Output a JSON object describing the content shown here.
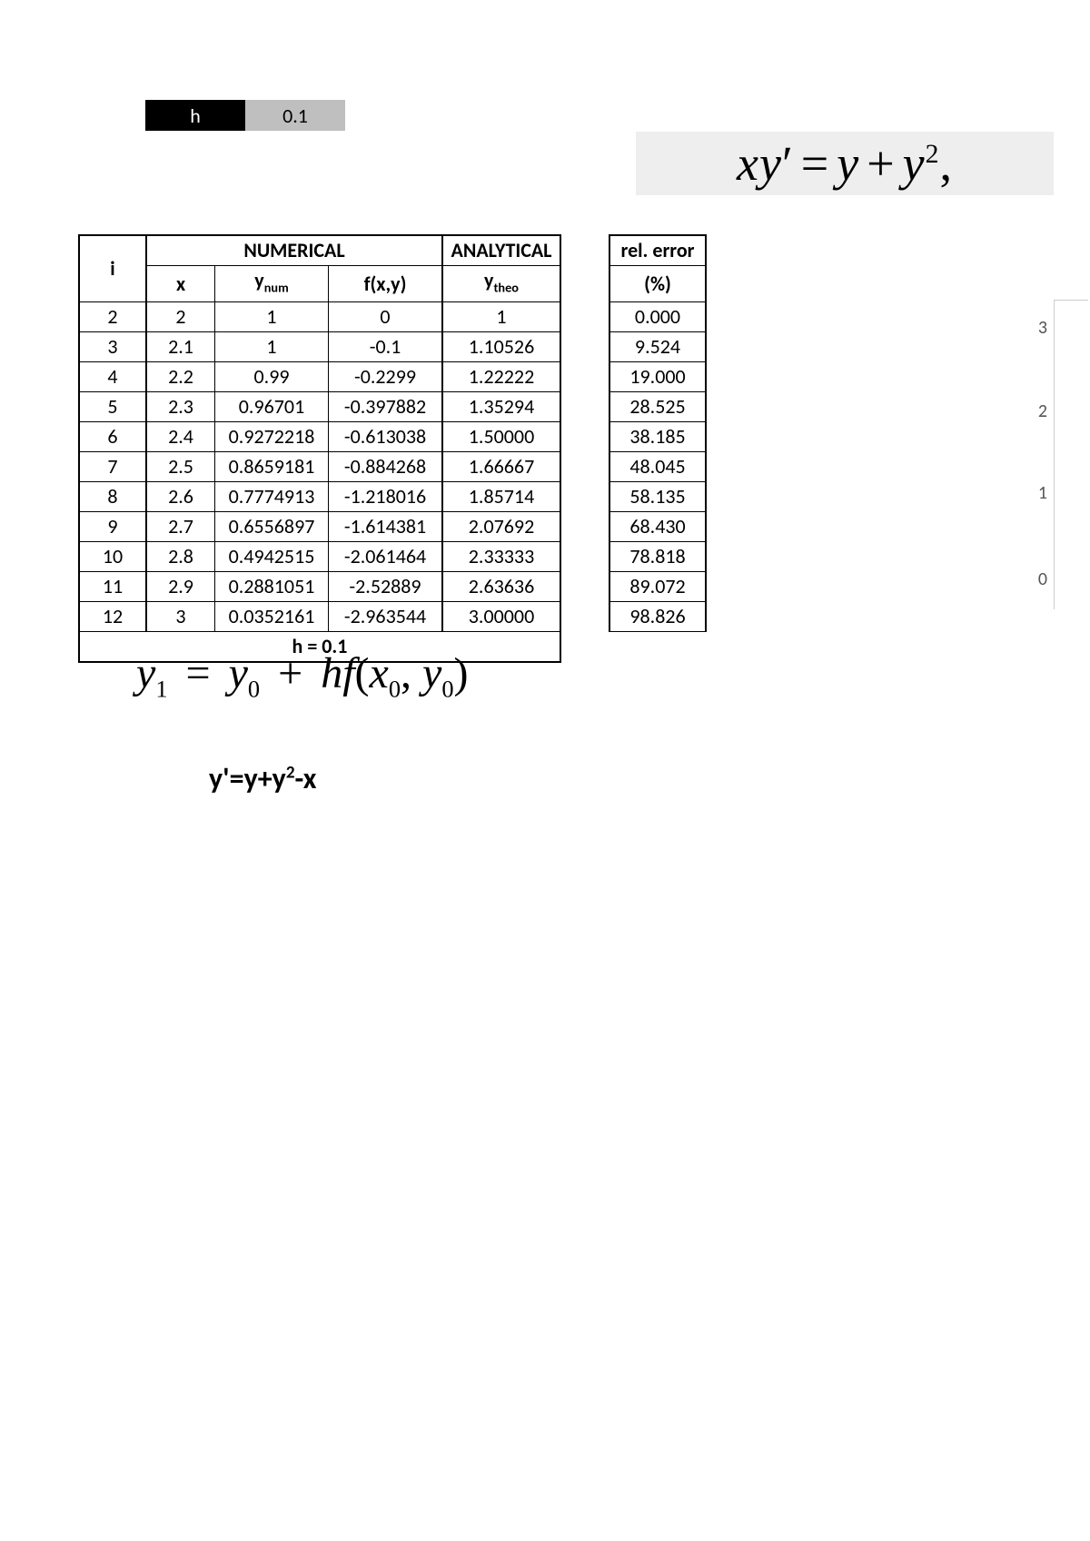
{
  "hbox": {
    "label": "h",
    "value": "0.1"
  },
  "equation1": {
    "text_parts": [
      "x",
      "y",
      "′",
      " = ",
      "y",
      " + ",
      "y",
      "2",
      ","
    ]
  },
  "table": {
    "headers": {
      "i": "i",
      "numerical": "NUMERICAL",
      "analytical": "ANALYTICAL",
      "x": "x",
      "ynum_prefix": "y",
      "ynum_sub": "num",
      "fxy": "f(x,y)",
      "ytheo_prefix": "y",
      "ytheo_sub": "theo",
      "rel_error": "rel. error",
      "percent": "(%)"
    },
    "rows": [
      {
        "i": "2",
        "x": "2",
        "ynum": "1",
        "fxy": "0",
        "ytheo": "1",
        "err": "0.000"
      },
      {
        "i": "3",
        "x": "2.1",
        "ynum": "1",
        "fxy": "-0.1",
        "ytheo": "1.10526",
        "err": "9.524"
      },
      {
        "i": "4",
        "x": "2.2",
        "ynum": "0.99",
        "fxy": "-0.2299",
        "ytheo": "1.22222",
        "err": "19.000"
      },
      {
        "i": "5",
        "x": "2.3",
        "ynum": "0.96701",
        "fxy": "-0.397882",
        "ytheo": "1.35294",
        "err": "28.525"
      },
      {
        "i": "6",
        "x": "2.4",
        "ynum": "0.9272218",
        "fxy": "-0.613038",
        "ytheo": "1.50000",
        "err": "38.185"
      },
      {
        "i": "7",
        "x": "2.5",
        "ynum": "0.8659181",
        "fxy": "-0.884268",
        "ytheo": "1.66667",
        "err": "48.045"
      },
      {
        "i": "8",
        "x": "2.6",
        "ynum": "0.7774913",
        "fxy": "-1.218016",
        "ytheo": "1.85714",
        "err": "58.135"
      },
      {
        "i": "9",
        "x": "2.7",
        "ynum": "0.6556897",
        "fxy": "-1.614381",
        "ytheo": "2.07692",
        "err": "68.430"
      },
      {
        "i": "10",
        "x": "2.8",
        "ynum": "0.4942515",
        "fxy": "-2.061464",
        "ytheo": "2.33333",
        "err": "78.818"
      },
      {
        "i": "11",
        "x": "2.9",
        "ynum": "0.2881051",
        "fxy": "-2.52889",
        "ytheo": "2.63636",
        "err": "89.072"
      },
      {
        "i": "12",
        "x": "3",
        "ynum": "0.0352161",
        "fxy": "-2.963544",
        "ytheo": "3.00000",
        "err": "98.826"
      }
    ],
    "footer": "h = 0.1"
  },
  "equation2": {
    "y1": "y",
    "sub1": "1",
    "eq": " = ",
    "y0": "y",
    "sub0": "0",
    "plus": " + ",
    "h": "h",
    "f": "f",
    "open": "(",
    "x0": "x",
    "subx": "0",
    "comma": ", ",
    "y02": "y",
    "suby": "0",
    "close": ")"
  },
  "equation3": "y'=y+y²-x",
  "axis": {
    "labels": [
      "3",
      "2",
      "1",
      "0"
    ]
  }
}
